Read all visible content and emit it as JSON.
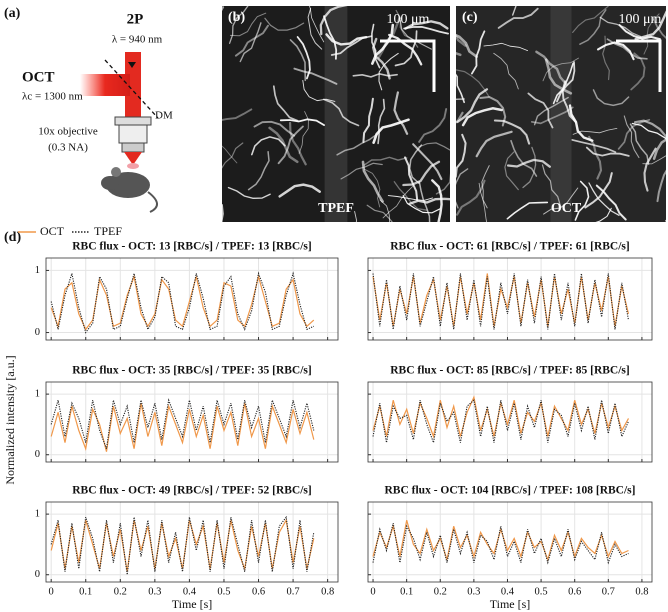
{
  "panels": {
    "a": {
      "label": "(a)",
      "laser": "2P",
      "laser_wavelength": "λ = 940 nm",
      "oct": "OCT",
      "oct_wavelength": "λc = 1300 nm",
      "mirror": "DM",
      "objective": "10x objective",
      "aperture": "(0.3 NA)"
    },
    "b": {
      "label": "(b)",
      "scale": "100 μm",
      "modality": "TPEF"
    },
    "c": {
      "label": "(c)",
      "scale": "100 μm",
      "modality": "OCT"
    },
    "d": {
      "label": "(d)",
      "ylabel": "Normalized intensity [a.u.]"
    }
  },
  "chart_data": [
    {
      "type": "line",
      "title": "RBC flux - OCT: 13 [RBC/s] / TPEF: 13 [RBC/s]",
      "x": [
        0,
        0.02,
        0.04,
        0.06,
        0.08,
        0.1,
        0.12,
        0.14,
        0.16,
        0.18,
        0.2,
        0.22,
        0.24,
        0.26,
        0.28,
        0.3,
        0.32,
        0.34,
        0.36,
        0.38,
        0.4,
        0.42,
        0.44,
        0.46,
        0.48,
        0.5,
        0.52,
        0.54,
        0.56,
        0.58,
        0.6,
        0.62,
        0.64,
        0.66,
        0.68,
        0.7,
        0.72,
        0.74,
        0.76
      ],
      "series": [
        {
          "name": "OCT",
          "color": "#f0984a",
          "style": "solid",
          "values": [
            0.4,
            0.1,
            0.7,
            0.8,
            0.3,
            0.05,
            0.2,
            0.85,
            0.6,
            0.1,
            0.15,
            0.6,
            0.9,
            0.3,
            0.1,
            0.3,
            0.85,
            0.7,
            0.2,
            0.1,
            0.5,
            0.9,
            0.4,
            0.1,
            0.2,
            0.8,
            0.75,
            0.2,
            0.1,
            0.45,
            0.9,
            0.5,
            0.1,
            0.15,
            0.7,
            0.85,
            0.3,
            0.1,
            0.2
          ]
        },
        {
          "name": "TPEF",
          "color": "#222222",
          "style": "dotted",
          "values": [
            0.5,
            0.05,
            0.6,
            0.95,
            0.4,
            0.0,
            0.15,
            0.9,
            0.7,
            0.05,
            0.1,
            0.55,
            0.95,
            0.4,
            0.05,
            0.25,
            0.9,
            0.8,
            0.1,
            0.05,
            0.4,
            0.95,
            0.55,
            0.05,
            0.1,
            0.75,
            0.9,
            0.3,
            0.05,
            0.35,
            0.95,
            0.65,
            0.05,
            0.1,
            0.6,
            0.95,
            0.45,
            0.05,
            0.1
          ]
        }
      ],
      "xlim": [
        -0.015,
        0.83
      ],
      "xticks": [
        0,
        0.1,
        0.2,
        0.3,
        0.4,
        0.5,
        0.6,
        0.7,
        0.8
      ],
      "ylim": [
        -0.12,
        1.2
      ],
      "yticks": [
        0,
        1
      ],
      "grid": true,
      "xtick_labels": false,
      "ytick_labels": true
    },
    {
      "type": "line",
      "title": "RBC flux - OCT: 61 [RBC/s] / TPEF: 61 [RBC/s]",
      "x": [
        0,
        0.02,
        0.04,
        0.06,
        0.08,
        0.1,
        0.12,
        0.14,
        0.16,
        0.18,
        0.2,
        0.22,
        0.24,
        0.26,
        0.28,
        0.3,
        0.32,
        0.34,
        0.36,
        0.38,
        0.4,
        0.42,
        0.44,
        0.46,
        0.48,
        0.5,
        0.52,
        0.54,
        0.56,
        0.58,
        0.6,
        0.62,
        0.64,
        0.66,
        0.68,
        0.7,
        0.72,
        0.74,
        0.76
      ],
      "series": [
        {
          "color": "#f0984a",
          "style": "solid",
          "values": [
            0.9,
            0.2,
            0.8,
            0.1,
            0.7,
            0.3,
            0.9,
            0.15,
            0.6,
            0.85,
            0.2,
            0.75,
            0.1,
            0.9,
            0.3,
            0.8,
            0.2,
            0.95,
            0.1,
            0.7,
            0.4,
            0.9,
            0.15,
            0.8,
            0.25,
            0.85,
            0.1,
            0.9,
            0.3,
            0.7,
            0.15,
            0.9,
            0.2,
            0.8,
            0.35,
            0.9,
            0.1,
            0.75,
            0.3
          ]
        },
        {
          "color": "#222222",
          "style": "dotted",
          "values": [
            0.95,
            0.1,
            0.85,
            0.05,
            0.75,
            0.2,
            0.95,
            0.1,
            0.5,
            0.9,
            0.1,
            0.8,
            0.05,
            0.95,
            0.2,
            0.85,
            0.1,
            0.9,
            0.05,
            0.8,
            0.3,
            0.95,
            0.1,
            0.85,
            0.15,
            0.9,
            0.05,
            0.95,
            0.2,
            0.8,
            0.1,
            0.95,
            0.15,
            0.85,
            0.25,
            0.95,
            0.05,
            0.8,
            0.2
          ]
        }
      ],
      "xlim": [
        -0.015,
        0.83
      ],
      "xticks": [
        0,
        0.1,
        0.2,
        0.3,
        0.4,
        0.5,
        0.6,
        0.7,
        0.8
      ],
      "ylim": [
        -0.12,
        1.2
      ],
      "yticks": [
        0,
        1
      ],
      "grid": true,
      "xtick_labels": false,
      "ytick_labels": false
    },
    {
      "type": "line",
      "title": "RBC flux - OCT: 35 [RBC/s] / TPEF: 35 [RBC/s]",
      "x": [
        0,
        0.02,
        0.04,
        0.06,
        0.08,
        0.1,
        0.12,
        0.14,
        0.16,
        0.18,
        0.2,
        0.22,
        0.24,
        0.26,
        0.28,
        0.3,
        0.32,
        0.34,
        0.36,
        0.38,
        0.4,
        0.42,
        0.44,
        0.46,
        0.48,
        0.5,
        0.52,
        0.54,
        0.56,
        0.58,
        0.6,
        0.62,
        0.64,
        0.66,
        0.68,
        0.7,
        0.72,
        0.74,
        0.76
      ],
      "series": [
        {
          "color": "#f0984a",
          "style": "solid",
          "values": [
            0.3,
            0.7,
            0.2,
            0.8,
            0.4,
            0.1,
            0.75,
            0.5,
            0.05,
            0.8,
            0.35,
            0.6,
            0.1,
            0.85,
            0.3,
            0.7,
            0.15,
            0.8,
            0.5,
            0.2,
            0.75,
            0.3,
            0.65,
            0.1,
            0.8,
            0.4,
            0.7,
            0.15,
            0.85,
            0.3,
            0.6,
            0.1,
            0.8,
            0.5,
            0.2,
            0.75,
            0.35,
            0.7,
            0.25
          ]
        },
        {
          "color": "#222222",
          "style": "dotted",
          "values": [
            0.5,
            0.9,
            0.3,
            0.85,
            0.6,
            0.2,
            0.9,
            0.4,
            0.1,
            0.9,
            0.5,
            0.8,
            0.2,
            0.9,
            0.45,
            0.85,
            0.25,
            0.9,
            0.6,
            0.3,
            0.9,
            0.4,
            0.8,
            0.2,
            0.9,
            0.5,
            0.85,
            0.25,
            0.9,
            0.45,
            0.8,
            0.2,
            0.9,
            0.6,
            0.3,
            0.9,
            0.45,
            0.85,
            0.4
          ]
        }
      ],
      "xlim": [
        -0.015,
        0.83
      ],
      "xticks": [
        0,
        0.1,
        0.2,
        0.3,
        0.4,
        0.5,
        0.6,
        0.7,
        0.8
      ],
      "ylim": [
        -0.12,
        1.2
      ],
      "yticks": [
        0,
        1
      ],
      "grid": true,
      "xtick_labels": false,
      "ytick_labels": true
    },
    {
      "type": "line",
      "title": "RBC flux - OCT: 85 [RBC/s] / TPEF: 85 [RBC/s]",
      "x": [
        0,
        0.02,
        0.04,
        0.06,
        0.08,
        0.1,
        0.12,
        0.14,
        0.16,
        0.18,
        0.2,
        0.22,
        0.24,
        0.26,
        0.28,
        0.3,
        0.32,
        0.34,
        0.36,
        0.38,
        0.4,
        0.42,
        0.44,
        0.46,
        0.48,
        0.5,
        0.52,
        0.54,
        0.56,
        0.58,
        0.6,
        0.62,
        0.64,
        0.66,
        0.68,
        0.7,
        0.72,
        0.74,
        0.76
      ],
      "series": [
        {
          "color": "#f0984a",
          "style": "solid",
          "values": [
            0.4,
            0.8,
            0.3,
            0.9,
            0.5,
            0.75,
            0.35,
            0.85,
            0.6,
            0.3,
            0.9,
            0.45,
            0.8,
            0.3,
            0.7,
            0.95,
            0.4,
            0.75,
            0.3,
            0.85,
            0.5,
            0.9,
            0.35,
            0.7,
            0.55,
            0.85,
            0.3,
            0.8,
            0.6,
            0.4,
            0.9,
            0.5,
            0.75,
            0.35,
            0.85,
            0.45,
            0.8,
            0.4,
            0.6
          ]
        },
        {
          "color": "#222222",
          "style": "dotted",
          "values": [
            0.3,
            0.85,
            0.2,
            0.8,
            0.6,
            0.65,
            0.25,
            0.9,
            0.5,
            0.2,
            0.85,
            0.55,
            0.7,
            0.2,
            0.8,
            0.9,
            0.3,
            0.8,
            0.2,
            0.9,
            0.4,
            0.85,
            0.25,
            0.8,
            0.45,
            0.9,
            0.2,
            0.75,
            0.65,
            0.3,
            0.85,
            0.4,
            0.8,
            0.25,
            0.9,
            0.35,
            0.85,
            0.3,
            0.55
          ]
        }
      ],
      "xlim": [
        -0.015,
        0.83
      ],
      "xticks": [
        0,
        0.1,
        0.2,
        0.3,
        0.4,
        0.5,
        0.6,
        0.7,
        0.8
      ],
      "ylim": [
        -0.12,
        1.2
      ],
      "yticks": [
        0,
        1
      ],
      "grid": true,
      "xtick_labels": false,
      "ytick_labels": false
    },
    {
      "type": "line",
      "title": "RBC flux - OCT: 49 [RBC/s] / TPEF: 52 [RBC/s]",
      "xlabel": "Time [s]",
      "x": [
        0,
        0.02,
        0.04,
        0.06,
        0.08,
        0.1,
        0.12,
        0.14,
        0.16,
        0.18,
        0.2,
        0.22,
        0.24,
        0.26,
        0.28,
        0.3,
        0.32,
        0.34,
        0.36,
        0.38,
        0.4,
        0.42,
        0.44,
        0.46,
        0.48,
        0.5,
        0.52,
        0.54,
        0.56,
        0.58,
        0.6,
        0.62,
        0.64,
        0.66,
        0.68,
        0.7,
        0.72,
        0.74,
        0.76
      ],
      "series": [
        {
          "color": "#f0984a",
          "style": "solid",
          "values": [
            0.4,
            0.85,
            0.1,
            0.8,
            0.2,
            0.9,
            0.5,
            0.1,
            0.85,
            0.3,
            0.75,
            0.05,
            0.9,
            0.4,
            0.8,
            0.1,
            0.85,
            0.3,
            0.6,
            0.1,
            0.9,
            0.5,
            0.8,
            0.1,
            0.85,
            0.2,
            0.9,
            0.4,
            0.1,
            0.8,
            0.3,
            0.85,
            0.1,
            0.7,
            0.9,
            0.2,
            0.8,
            0.1,
            0.6
          ]
        },
        {
          "color": "#222222",
          "style": "dotted",
          "values": [
            0.5,
            0.9,
            0.05,
            0.85,
            0.1,
            0.95,
            0.6,
            0.05,
            0.9,
            0.2,
            0.85,
            0.0,
            0.95,
            0.3,
            0.9,
            0.05,
            0.9,
            0.2,
            0.7,
            0.05,
            0.95,
            0.4,
            0.9,
            0.05,
            0.9,
            0.1,
            0.95,
            0.5,
            0.05,
            0.9,
            0.2,
            0.9,
            0.05,
            0.8,
            0.95,
            0.1,
            0.9,
            0.05,
            0.7
          ]
        }
      ],
      "xlim": [
        -0.015,
        0.83
      ],
      "xticks": [
        0,
        0.1,
        0.2,
        0.3,
        0.4,
        0.5,
        0.6,
        0.7,
        0.8
      ],
      "ylim": [
        -0.12,
        1.2
      ],
      "yticks": [
        0,
        1
      ],
      "grid": true,
      "xtick_labels": true,
      "ytick_labels": true
    },
    {
      "type": "line",
      "title": "RBC flux - OCT: 104 [RBC/s] / TPEF: 108 [RBC/s]",
      "xlabel": "Time [s]",
      "x": [
        0,
        0.02,
        0.04,
        0.06,
        0.08,
        0.1,
        0.12,
        0.14,
        0.16,
        0.18,
        0.2,
        0.22,
        0.24,
        0.26,
        0.28,
        0.3,
        0.32,
        0.34,
        0.36,
        0.38,
        0.4,
        0.42,
        0.44,
        0.46,
        0.48,
        0.5,
        0.52,
        0.54,
        0.56,
        0.58,
        0.6,
        0.62,
        0.64,
        0.66,
        0.68,
        0.7,
        0.72,
        0.74,
        0.76
      ],
      "series": [
        {
          "color": "#f0984a",
          "style": "solid",
          "values": [
            0.3,
            0.7,
            0.45,
            0.8,
            0.3,
            0.9,
            0.5,
            0.35,
            0.75,
            0.4,
            0.6,
            0.25,
            0.8,
            0.45,
            0.65,
            0.3,
            0.7,
            0.5,
            0.35,
            0.75,
            0.4,
            0.6,
            0.3,
            0.7,
            0.45,
            0.55,
            0.25,
            0.65,
            0.4,
            0.7,
            0.3,
            0.6,
            0.45,
            0.35,
            0.65,
            0.3,
            0.55,
            0.35,
            0.4
          ]
        },
        {
          "color": "#222222",
          "style": "dotted",
          "values": [
            0.2,
            0.75,
            0.4,
            0.85,
            0.2,
            0.8,
            0.6,
            0.25,
            0.7,
            0.3,
            0.65,
            0.2,
            0.75,
            0.35,
            0.7,
            0.2,
            0.65,
            0.55,
            0.25,
            0.8,
            0.3,
            0.55,
            0.2,
            0.75,
            0.35,
            0.6,
            0.2,
            0.6,
            0.3,
            0.75,
            0.25,
            0.55,
            0.4,
            0.25,
            0.7,
            0.2,
            0.5,
            0.3,
            0.35
          ]
        }
      ],
      "xlim": [
        -0.015,
        0.83
      ],
      "xticks": [
        0,
        0.1,
        0.2,
        0.3,
        0.4,
        0.5,
        0.6,
        0.7,
        0.8
      ],
      "ylim": [
        -0.12,
        1.2
      ],
      "yticks": [
        0,
        1
      ],
      "grid": true,
      "xtick_labels": true,
      "ytick_labels": false
    }
  ]
}
